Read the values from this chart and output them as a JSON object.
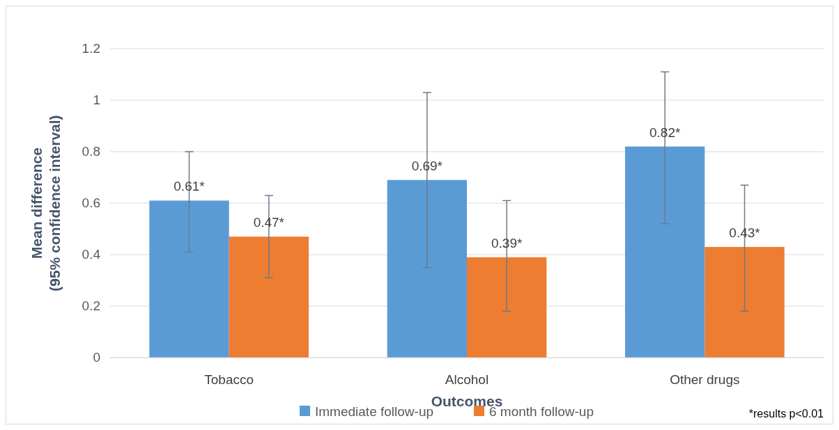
{
  "chart_data": {
    "type": "bar",
    "xlabel": "Outcomes",
    "ylabel": "Mean difference\n(95% confidence interval)",
    "categories": [
      "Tobacco",
      "Alcohol",
      "Other drugs"
    ],
    "series": [
      {
        "name": "Immediate follow-up",
        "color": "#5b9bd5",
        "values": [
          0.61,
          0.69,
          0.82
        ],
        "errors": [
          [
            0.41,
            0.8
          ],
          [
            0.35,
            1.03
          ],
          [
            0.52,
            1.11
          ]
        ],
        "value_labels": [
          "0.61*",
          "0.69*",
          "0.82*"
        ]
      },
      {
        "name": "6 month follow-up",
        "color": "#ed7d31",
        "values": [
          0.47,
          0.39,
          0.43
        ],
        "errors": [
          [
            0.31,
            0.63
          ],
          [
            0.18,
            0.61
          ],
          [
            0.18,
            0.67
          ]
        ],
        "value_labels": [
          "0.47*",
          "0.39*",
          "0.43*"
        ]
      }
    ],
    "ylim": [
      0,
      1.2
    ],
    "yticks": [
      0,
      0.2,
      0.4,
      0.6,
      0.8,
      1,
      1.2
    ],
    "grid": "y",
    "legend": "bottom",
    "annotations": [
      "*results p<0.01"
    ]
  }
}
